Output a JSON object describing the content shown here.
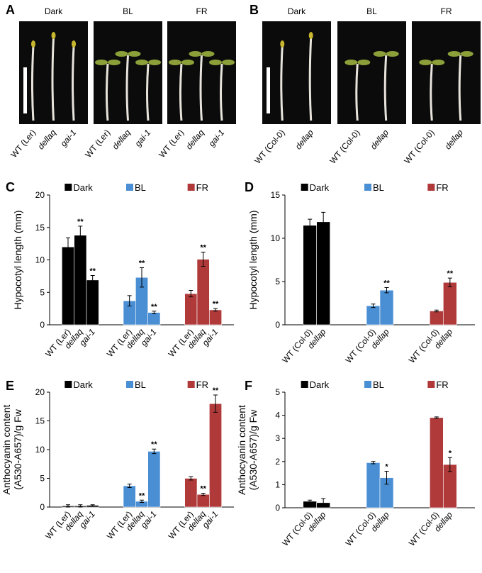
{
  "photo_panels": [
    {
      "panel": "A",
      "photos": [
        {
          "title": "Dark",
          "genotypes": [
            "WT (Ler)",
            "dellaq",
            "gai-1"
          ]
        },
        {
          "title": "BL",
          "genotypes": [
            "WT (Ler)",
            "dellaq",
            "gai-1"
          ]
        },
        {
          "title": "FR",
          "genotypes": [
            "WT (Ler)",
            "dellaq",
            "gai-1"
          ]
        }
      ]
    },
    {
      "panel": "B",
      "photos": [
        {
          "title": "Dark",
          "genotypes": [
            "WT (Col-0)",
            "dellap"
          ]
        },
        {
          "title": "BL",
          "genotypes": [
            "WT (Col-0)",
            "dellap"
          ]
        },
        {
          "title": "FR",
          "genotypes": [
            "WT (Col-0)",
            "dellap"
          ]
        }
      ]
    }
  ],
  "chart_data": [
    {
      "type": "bar",
      "panel": "C",
      "ylabel": [
        "Hypocotyl length (mm)"
      ],
      "ylim": [
        0,
        20
      ],
      "yticks": [
        0,
        5,
        10,
        15,
        20
      ],
      "series": [
        {
          "name": "Dark",
          "color": "#000000",
          "categories": [
            "WT (Ler)",
            "dellaq",
            "gai-1"
          ],
          "values": [
            12.0,
            13.8,
            6.9
          ],
          "errors": [
            1.4,
            1.4,
            0.7
          ],
          "annotations": [
            null,
            "**",
            "**"
          ]
        },
        {
          "name": "BL",
          "color": "#4a8fd4",
          "categories": [
            "WT (Ler)",
            "dellaq",
            "gai-1"
          ],
          "values": [
            3.7,
            7.3,
            1.9
          ],
          "errors": [
            0.8,
            1.5,
            0.2
          ],
          "annotations": [
            null,
            "**",
            "**"
          ]
        },
        {
          "name": "FR",
          "color": "#b03a3a",
          "categories": [
            "WT (Ler)",
            "dellaq",
            "gai-1"
          ],
          "values": [
            4.8,
            10.1,
            2.3
          ],
          "errors": [
            0.5,
            1.1,
            0.2
          ],
          "annotations": [
            null,
            "**",
            "**"
          ]
        }
      ]
    },
    {
      "type": "bar",
      "panel": "D",
      "ylabel": [
        "Hypocotyl length (mm)"
      ],
      "ylim": [
        0,
        15
      ],
      "yticks": [
        0,
        5,
        10,
        15
      ],
      "series": [
        {
          "name": "Dark",
          "color": "#000000",
          "categories": [
            "WT (Col-0)",
            "dellap"
          ],
          "values": [
            11.5,
            11.9
          ],
          "errors": [
            0.7,
            1.1
          ],
          "annotations": [
            null,
            null
          ]
        },
        {
          "name": "BL",
          "color": "#4a8fd4",
          "categories": [
            "WT (Col-0)",
            "dellap"
          ],
          "values": [
            2.2,
            4.0
          ],
          "errors": [
            0.2,
            0.3
          ],
          "annotations": [
            null,
            "**"
          ]
        },
        {
          "name": "FR",
          "color": "#b03a3a",
          "categories": [
            "WT (Col-0)",
            "dellap"
          ],
          "values": [
            1.6,
            4.9
          ],
          "errors": [
            0.1,
            0.5
          ],
          "annotations": [
            null,
            "**"
          ]
        }
      ]
    },
    {
      "type": "bar",
      "panel": "E",
      "ylabel": [
        "Anthocyanin content",
        "(A530-A657)/g Fw"
      ],
      "ylim": [
        0,
        20
      ],
      "yticks": [
        0,
        5,
        10,
        15,
        20
      ],
      "series": [
        {
          "name": "Dark",
          "color": "#000000",
          "categories": [
            "WT (Ler)",
            "dellaq",
            "gai-1"
          ],
          "values": [
            0.2,
            0.2,
            0.3
          ],
          "errors": [
            0.2,
            0.2,
            0.1
          ],
          "annotations": [
            null,
            null,
            null
          ]
        },
        {
          "name": "BL",
          "color": "#4a8fd4",
          "categories": [
            "WT (Ler)",
            "dellaq",
            "gai-1"
          ],
          "values": [
            3.7,
            1.0,
            9.7
          ],
          "errors": [
            0.3,
            0.2,
            0.4
          ],
          "annotations": [
            null,
            "**",
            "**"
          ]
        },
        {
          "name": "FR",
          "color": "#b03a3a",
          "categories": [
            "WT (Ler)",
            "dellaq",
            "gai-1"
          ],
          "values": [
            5.0,
            2.2,
            18.0
          ],
          "errors": [
            0.3,
            0.2,
            1.5
          ],
          "annotations": [
            null,
            "**",
            "**"
          ]
        }
      ]
    },
    {
      "type": "bar",
      "panel": "F",
      "ylabel": [
        "Anthocyanin content",
        "(A530-A657)/g Fw"
      ],
      "ylim": [
        0,
        5
      ],
      "yticks": [
        0,
        1,
        2,
        3,
        4,
        5
      ],
      "series": [
        {
          "name": "Dark",
          "color": "#000000",
          "categories": [
            "WT (Col-0)",
            "dellap"
          ],
          "values": [
            0.28,
            0.22
          ],
          "errors": [
            0.05,
            0.18
          ],
          "annotations": [
            null,
            null
          ]
        },
        {
          "name": "BL",
          "color": "#4a8fd4",
          "categories": [
            "WT (Col-0)",
            "dellap"
          ],
          "values": [
            1.95,
            1.3
          ],
          "errors": [
            0.05,
            0.28
          ],
          "annotations": [
            null,
            "*"
          ]
        },
        {
          "name": "FR",
          "color": "#b03a3a",
          "categories": [
            "WT (Col-0)",
            "dellap"
          ],
          "values": [
            3.9,
            1.87
          ],
          "errors": [
            0.03,
            0.3
          ],
          "annotations": [
            null,
            "*"
          ]
        }
      ]
    }
  ]
}
